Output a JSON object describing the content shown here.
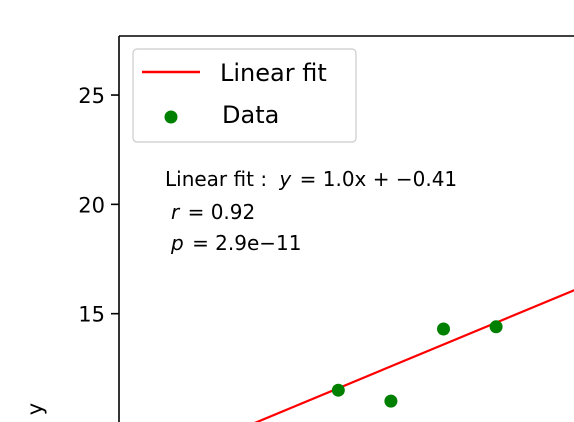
{
  "chart_data": {
    "type": "scatter",
    "ylabel": "y",
    "ylim": [
      10.0,
      27.7
    ],
    "xlim": [
      7.83,
      16.5
    ],
    "yticks": [
      15,
      20,
      25
    ],
    "ytick_labels": [
      "15",
      "20",
      "25"
    ],
    "grid": false,
    "legend": {
      "placement": "top-left",
      "entries": [
        {
          "label": "Linear fit",
          "kind": "line",
          "color": "#ff0000"
        },
        {
          "label": "Data",
          "kind": "marker",
          "color": "#008000"
        }
      ]
    },
    "annotation": {
      "fit_label": "Linear fit :",
      "fit_y": "y",
      "fit_rhs": "= 1.0x + −0.41",
      "r_var": "r",
      "r_rhs": "= 0.92",
      "p_var": "p",
      "p_rhs": "= 2.9e−11"
    },
    "series": [
      {
        "name": "Data",
        "marker_color": "#008000",
        "points": [
          {
            "x": 12.0,
            "y": 11.5
          },
          {
            "x": 13.0,
            "y": 11.0
          },
          {
            "x": 14.0,
            "y": 14.3
          },
          {
            "x": 15.0,
            "y": 14.4
          }
        ]
      },
      {
        "name": "Linear fit",
        "line_color": "#ff0000",
        "slope": 1.0,
        "intercept": -0.41,
        "x_range": [
          10.0,
          20.0
        ]
      }
    ]
  }
}
